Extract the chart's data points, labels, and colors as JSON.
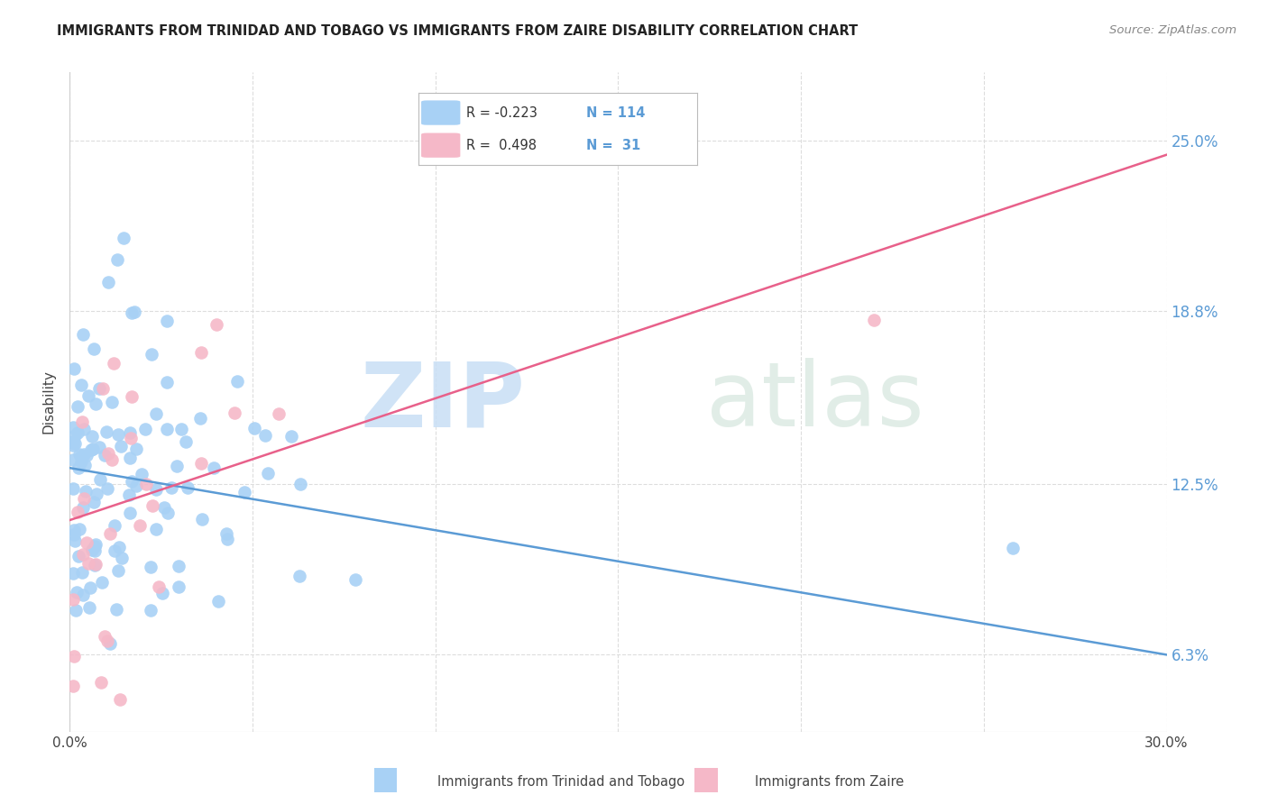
{
  "title": "IMMIGRANTS FROM TRINIDAD AND TOBAGO VS IMMIGRANTS FROM ZAIRE DISABILITY CORRELATION CHART",
  "source": "Source: ZipAtlas.com",
  "ylabel": "Disability",
  "ytick_labels": [
    "6.3%",
    "12.5%",
    "18.8%",
    "25.0%"
  ],
  "ytick_values": [
    0.063,
    0.125,
    0.188,
    0.25
  ],
  "xtick_values": [
    0.0,
    0.05,
    0.1,
    0.15,
    0.2,
    0.25,
    0.3
  ],
  "xlim": [
    0.0,
    0.3
  ],
  "ylim": [
    0.035,
    0.275
  ],
  "r_tt": -0.223,
  "n_tt": 114,
  "r_zaire": 0.498,
  "n_zaire": 31,
  "color_tt": "#a8d1f5",
  "color_zaire": "#f5b8c8",
  "line_color_tt": "#5b9bd5",
  "line_color_zaire": "#e8608a",
  "watermark_zip": "ZIP",
  "watermark_atlas": "atlas",
  "legend_label_tt": "Immigrants from Trinidad and Tobago",
  "legend_label_zaire": "Immigrants from Zaire",
  "tt_line_x0": 0.0,
  "tt_line_y0": 0.131,
  "tt_line_x1": 0.3,
  "tt_line_y1": 0.063,
  "z_line_x0": 0.0,
  "z_line_y0": 0.112,
  "z_line_x1": 0.3,
  "z_line_y1": 0.245
}
